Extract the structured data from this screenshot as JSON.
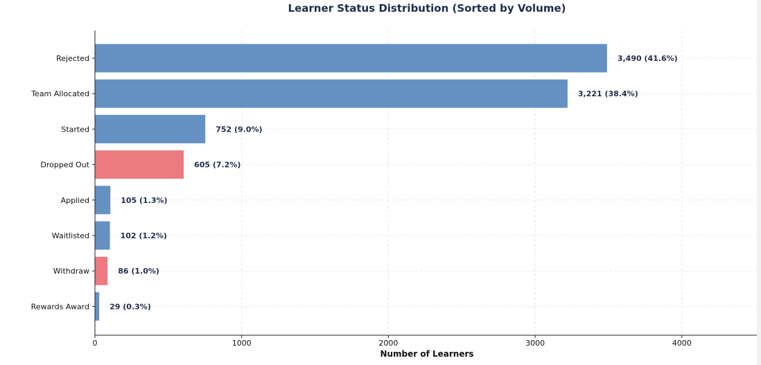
{
  "chart_data": {
    "type": "bar",
    "orientation": "horizontal",
    "title": "Learner Status Distribution (Sorted by Volume)",
    "xlabel": "Number of Learners",
    "ylabel": "",
    "xlim": [
      0,
      4530
    ],
    "xticks": [
      0,
      1000,
      2000,
      3000,
      4000
    ],
    "grid": true,
    "categories": [
      "Rejected",
      "Team Allocated",
      "Started",
      "Dropped Out",
      "Applied",
      "Waitlisted",
      "Withdraw",
      "Rewards Award"
    ],
    "values": [
      3490,
      3221,
      752,
      605,
      105,
      102,
      86,
      29
    ],
    "data_labels": [
      "3,490 (41.6%)",
      "3,221 (38.4%)",
      "752 (9.0%)",
      "605 (7.2%)",
      "105 (1.3%)",
      "102 (1.2%)",
      "86 (1.0%)",
      "29 (0.3%)"
    ],
    "bar_colors": [
      "#6590c2",
      "#6590c2",
      "#6590c2",
      "#eb7b81",
      "#6590c2",
      "#6590c2",
      "#eb7b81",
      "#6590c2"
    ]
  }
}
